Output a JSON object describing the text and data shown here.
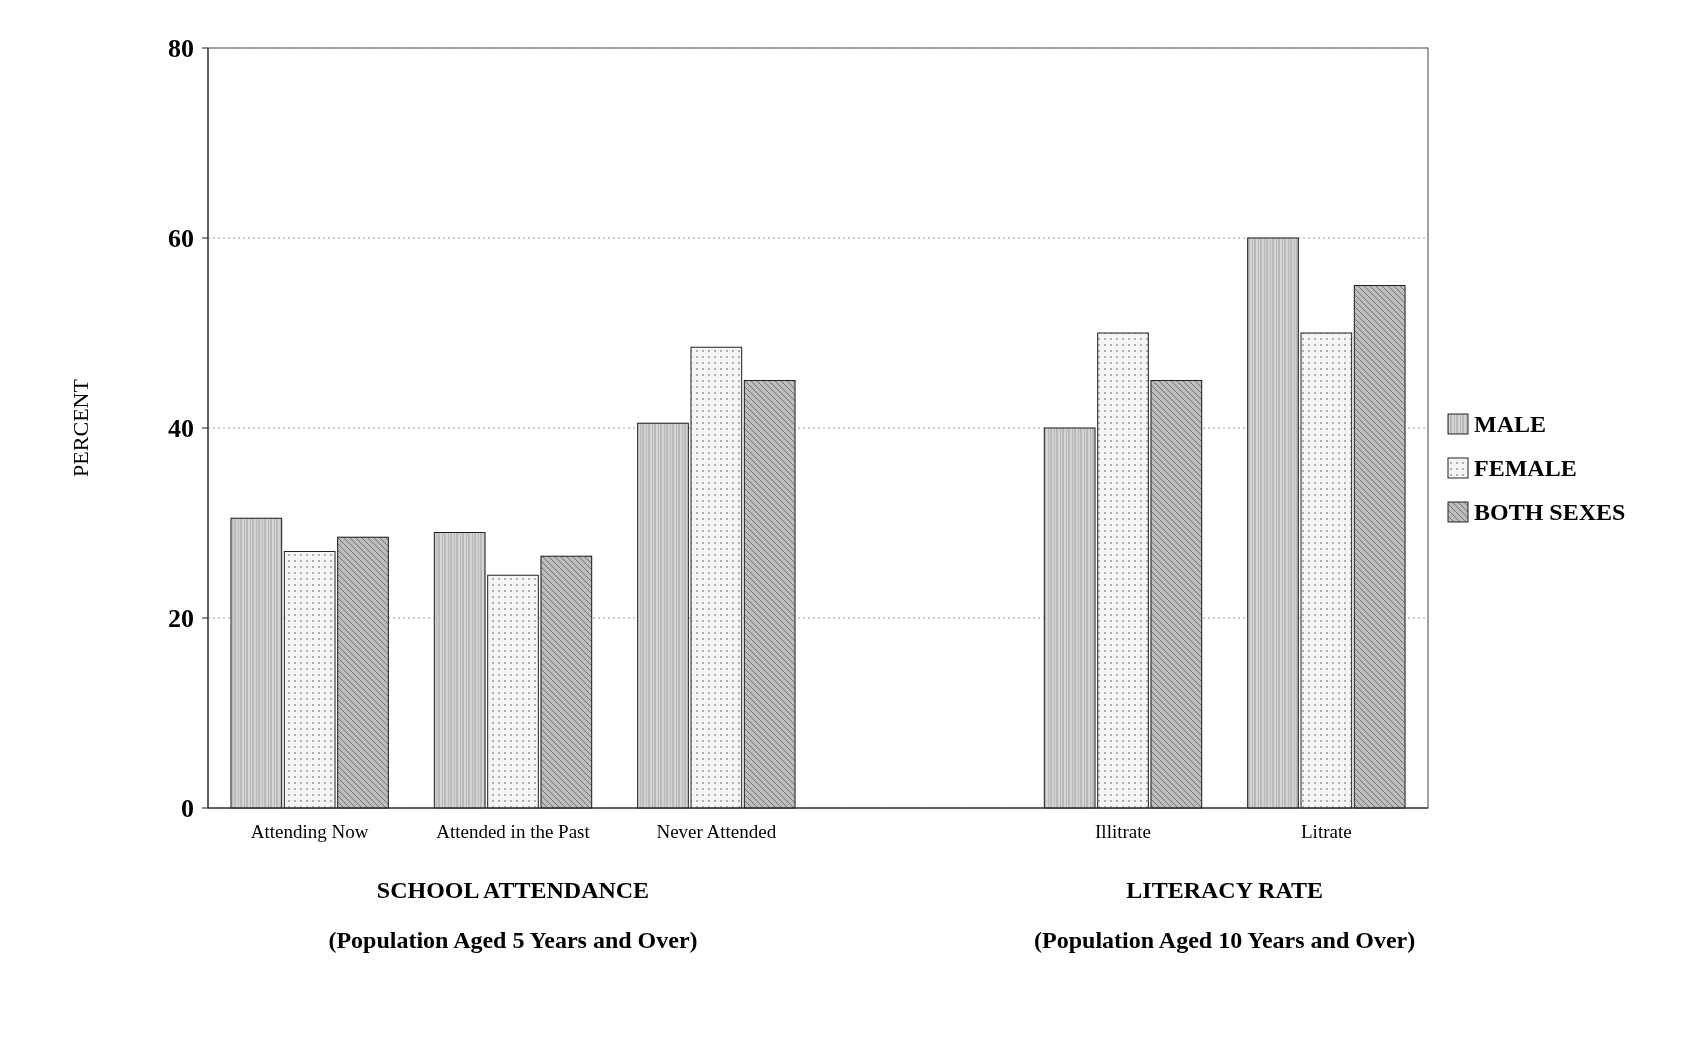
{
  "chart_data": {
    "type": "bar",
    "ylabel": "PERCENT",
    "categories": [
      "Attending Now",
      "Attended in the Past",
      "Never Attended",
      null,
      "Illitrate",
      "Litrate"
    ],
    "series": [
      {
        "name": "MALE",
        "color": "#d4d4d4",
        "values": [
          30.5,
          29,
          40.5,
          null,
          40,
          60
        ]
      },
      {
        "name": "FEMALE",
        "color": "#f4f4f4",
        "values": [
          27,
          24.5,
          48.5,
          null,
          50,
          50
        ]
      },
      {
        "name": "BOTH SEXES",
        "color": "#bdbdbd",
        "values": [
          28.5,
          26.5,
          45,
          null,
          45,
          55
        ]
      }
    ],
    "ylim": [
      0,
      80
    ],
    "yticks": [
      0,
      20,
      40,
      60,
      80
    ],
    "grid": "y",
    "legend": "right",
    "annotations": [
      "SCHOOL ATTENDANCE",
      "(Population Aged 5 Years and Over)",
      "LITERACY RATE",
      "(Population Aged 10 Years and Over)"
    ]
  }
}
